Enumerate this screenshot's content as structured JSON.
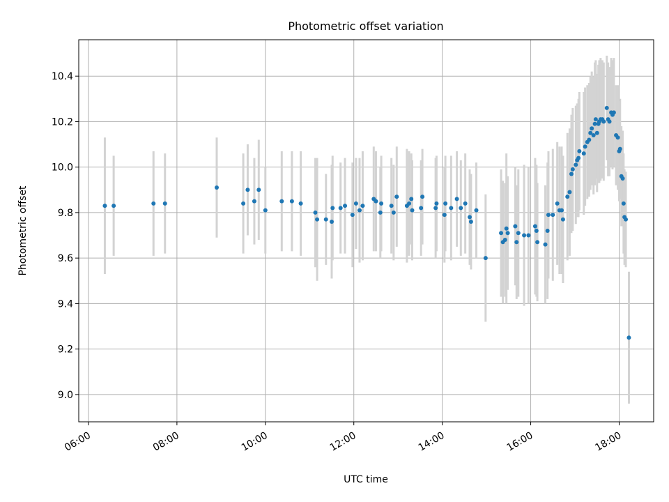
{
  "chart_data": {
    "type": "scatter",
    "title": "Photometric offset variation",
    "xlabel": "UTC time",
    "ylabel": "Photometric offset",
    "x_unit": "hours UTC",
    "xlim": [
      5.78,
      18.78
    ],
    "ylim": [
      8.88,
      10.56
    ],
    "xticks": [
      6,
      8,
      10,
      12,
      14,
      16,
      18
    ],
    "xtick_labels": [
      "06:00",
      "08:00",
      "10:00",
      "12:00",
      "14:00",
      "16:00",
      "18:00"
    ],
    "yticks": [
      9.0,
      9.2,
      9.4,
      9.6,
      9.8,
      10.0,
      10.2,
      10.4
    ],
    "ytick_labels": [
      "9.0",
      "9.2",
      "9.4",
      "9.6",
      "9.8",
      "10.0",
      "10.2",
      "10.4"
    ],
    "grid": true,
    "colors": {
      "points": "#1f77b4",
      "errorbars": "#d3d3d3",
      "grid": "#b0b0b0"
    },
    "series": [
      {
        "values_note": "x = UTC hour, y = offset, err = half error-bar length",
        "points": [
          [
            6.37,
            9.83,
            0.3
          ],
          [
            6.57,
            9.83,
            0.22
          ],
          [
            7.47,
            9.84,
            0.23
          ],
          [
            7.73,
            9.84,
            0.22
          ],
          [
            8.9,
            9.91,
            0.22
          ],
          [
            9.5,
            9.84,
            0.22
          ],
          [
            9.6,
            9.9,
            0.2
          ],
          [
            9.75,
            9.85,
            0.19
          ],
          [
            9.85,
            9.9,
            0.22
          ],
          [
            10.0,
            9.81,
            0.19
          ],
          [
            10.37,
            9.85,
            0.22
          ],
          [
            10.6,
            9.85,
            0.22
          ],
          [
            10.8,
            9.84,
            0.23
          ],
          [
            11.13,
            9.8,
            0.24
          ],
          [
            11.17,
            9.77,
            0.27
          ],
          [
            11.37,
            9.77,
            0.2
          ],
          [
            11.5,
            9.76,
            0.25
          ],
          [
            11.52,
            9.82,
            0.23
          ],
          [
            11.7,
            9.82,
            0.2
          ],
          [
            11.8,
            9.83,
            0.21
          ],
          [
            11.97,
            9.79,
            0.23
          ],
          [
            12.05,
            9.84,
            0.2
          ],
          [
            12.13,
            9.81,
            0.23
          ],
          [
            12.2,
            9.83,
            0.24
          ],
          [
            12.45,
            9.86,
            0.23
          ],
          [
            12.5,
            9.85,
            0.22
          ],
          [
            12.6,
            9.8,
            0.2
          ],
          [
            12.62,
            9.84,
            0.21
          ],
          [
            12.85,
            9.83,
            0.21
          ],
          [
            12.9,
            9.8,
            0.21
          ],
          [
            12.97,
            9.87,
            0.22
          ],
          [
            13.2,
            9.83,
            0.25
          ],
          [
            13.25,
            9.84,
            0.23
          ],
          [
            13.3,
            9.86,
            0.2
          ],
          [
            13.32,
            9.81,
            0.22
          ],
          [
            13.52,
            9.82,
            0.21
          ],
          [
            13.55,
            9.87,
            0.21
          ],
          [
            13.85,
            9.82,
            0.22
          ],
          [
            13.87,
            9.84,
            0.21
          ],
          [
            14.05,
            9.79,
            0.21
          ],
          [
            14.07,
            9.84,
            0.21
          ],
          [
            14.2,
            9.82,
            0.23
          ],
          [
            14.33,
            9.86,
            0.21
          ],
          [
            14.42,
            9.82,
            0.21
          ],
          [
            14.52,
            9.84,
            0.22
          ],
          [
            14.62,
            9.78,
            0.21
          ],
          [
            14.65,
            9.76,
            0.21
          ],
          [
            14.77,
            9.81,
            0.21
          ],
          [
            14.98,
            9.6,
            0.28
          ],
          [
            15.33,
            9.71,
            0.28
          ],
          [
            15.37,
            9.67,
            0.27
          ],
          [
            15.42,
            9.68,
            0.25
          ],
          [
            15.45,
            9.73,
            0.33
          ],
          [
            15.48,
            9.71,
            0.25
          ],
          [
            15.65,
            9.74,
            0.26
          ],
          [
            15.68,
            9.67,
            0.25
          ],
          [
            15.72,
            9.71,
            0.28
          ],
          [
            15.85,
            9.7,
            0.31
          ],
          [
            15.95,
            9.7,
            0.3
          ],
          [
            16.1,
            9.74,
            0.3
          ],
          [
            16.13,
            9.72,
            0.29
          ],
          [
            16.15,
            9.67,
            0.26
          ],
          [
            16.33,
            9.66,
            0.26
          ],
          [
            16.38,
            9.72,
            0.3
          ],
          [
            16.4,
            9.79,
            0.28
          ],
          [
            16.5,
            9.79,
            0.29
          ],
          [
            16.6,
            9.84,
            0.27
          ],
          [
            16.65,
            9.81,
            0.28
          ],
          [
            16.7,
            9.81,
            0.28
          ],
          [
            16.73,
            9.77,
            0.28
          ],
          [
            16.83,
            9.87,
            0.28
          ],
          [
            16.88,
            9.89,
            0.28
          ],
          [
            16.92,
            9.97,
            0.26
          ],
          [
            16.95,
            9.99,
            0.27
          ],
          [
            17.02,
            10.01,
            0.26
          ],
          [
            17.05,
            10.03,
            0.25
          ],
          [
            17.08,
            10.04,
            0.26
          ],
          [
            17.1,
            10.07,
            0.26
          ],
          [
            17.2,
            10.06,
            0.27
          ],
          [
            17.23,
            10.09,
            0.26
          ],
          [
            17.28,
            10.11,
            0.25
          ],
          [
            17.32,
            10.12,
            0.25
          ],
          [
            17.35,
            10.15,
            0.25
          ],
          [
            17.38,
            10.17,
            0.25
          ],
          [
            17.42,
            10.14,
            0.26
          ],
          [
            17.45,
            10.19,
            0.27
          ],
          [
            17.47,
            10.21,
            0.26
          ],
          [
            17.5,
            10.15,
            0.26
          ],
          [
            17.53,
            10.19,
            0.26
          ],
          [
            17.55,
            10.2,
            0.27
          ],
          [
            17.58,
            10.21,
            0.27
          ],
          [
            17.62,
            10.21,
            0.26
          ],
          [
            17.65,
            10.2,
            0.26
          ],
          [
            17.72,
            10.26,
            0.23
          ],
          [
            17.75,
            10.21,
            0.25
          ],
          [
            17.78,
            10.2,
            0.24
          ],
          [
            17.82,
            10.24,
            0.24
          ],
          [
            17.85,
            10.23,
            0.24
          ],
          [
            17.88,
            10.24,
            0.24
          ],
          [
            17.93,
            10.14,
            0.22
          ],
          [
            17.97,
            10.13,
            0.23
          ],
          [
            18.0,
            10.07,
            0.22
          ],
          [
            18.02,
            10.08,
            0.22
          ],
          [
            18.05,
            9.96,
            0.22
          ],
          [
            18.08,
            9.95,
            0.21
          ],
          [
            18.1,
            9.84,
            0.22
          ],
          [
            18.12,
            9.78,
            0.21
          ],
          [
            18.15,
            9.77,
            0.21
          ],
          [
            18.22,
            9.25,
            0.29
          ]
        ]
      }
    ]
  }
}
